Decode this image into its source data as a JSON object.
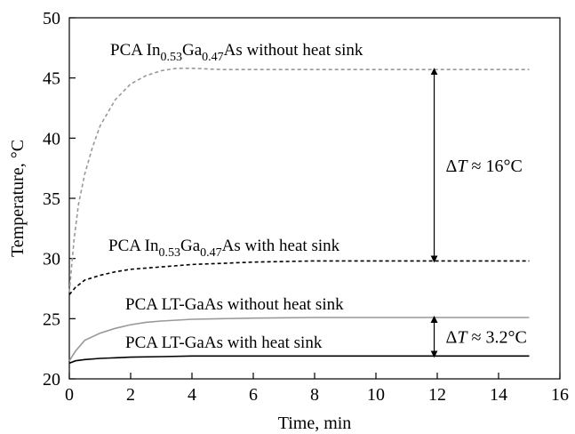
{
  "chart_data": {
    "type": "line",
    "xlabel": "Time, min",
    "ylabel": "Temperature, °C",
    "xlim": [
      0,
      16
    ],
    "ylim": [
      20,
      50
    ],
    "xticks": [
      "0",
      "2",
      "4",
      "6",
      "8",
      "10",
      "12",
      "14",
      "16"
    ],
    "yticks": [
      "20",
      "25",
      "30",
      "35",
      "40",
      "45",
      "50"
    ],
    "grid": false,
    "series": [
      {
        "name_main": "PCA In",
        "name_sub1": "0.53",
        "name_mid": "Ga",
        "name_sub2": "0.47",
        "name_tail": "As without heat sink",
        "color": "#999999",
        "style": "dashed",
        "x": [
          0,
          0.15,
          0.3,
          0.5,
          0.75,
          1,
          1.5,
          2,
          2.5,
          3,
          3.5,
          4,
          5,
          6,
          8,
          10,
          12,
          14,
          15
        ],
        "y": [
          27.2,
          31.5,
          34.5,
          37.0,
          39.2,
          41.0,
          43.2,
          44.5,
          45.2,
          45.6,
          45.8,
          45.8,
          45.7,
          45.7,
          45.7,
          45.7,
          45.7,
          45.7,
          45.7
        ]
      },
      {
        "name_main": "PCA In",
        "name_sub1": "0.53",
        "name_mid": "Ga",
        "name_sub2": "0.47",
        "name_tail": "As with heat sink",
        "color": "#000000",
        "style": "dashed",
        "x": [
          0,
          0.2,
          0.5,
          1,
          1.5,
          2,
          3,
          4,
          5,
          6,
          8,
          10,
          12,
          14,
          15
        ],
        "y": [
          27.0,
          27.6,
          28.2,
          28.6,
          28.9,
          29.1,
          29.3,
          29.5,
          29.6,
          29.7,
          29.8,
          29.8,
          29.8,
          29.8,
          29.8
        ]
      },
      {
        "name": "PCA LT-GaAs without heat sink",
        "color": "#999999",
        "style": "solid",
        "x": [
          0,
          0.2,
          0.5,
          1,
          1.5,
          2,
          2.5,
          3,
          4,
          5,
          6,
          8,
          10,
          12,
          14,
          15
        ],
        "y": [
          21.5,
          22.3,
          23.2,
          23.8,
          24.2,
          24.5,
          24.7,
          24.8,
          24.95,
          25.0,
          25.05,
          25.1,
          25.1,
          25.1,
          25.1,
          25.1
        ]
      },
      {
        "name": "PCA LT-GaAs with heat sink",
        "color": "#000000",
        "style": "solid",
        "x": [
          0,
          0.2,
          0.5,
          1,
          1.5,
          2,
          3,
          4,
          6,
          8,
          10,
          12,
          14,
          15
        ],
        "y": [
          21.3,
          21.5,
          21.6,
          21.7,
          21.75,
          21.8,
          21.85,
          21.9,
          21.9,
          21.9,
          21.9,
          21.9,
          21.9,
          21.9
        ]
      }
    ],
    "annotations": [
      {
        "text": "ΔT ≈ 16°C",
        "x": 11.9,
        "y_from": 45.7,
        "y_to": 29.8
      },
      {
        "text": "ΔT ≈ 3.2°C",
        "x": 11.9,
        "y_from": 25.1,
        "y_to": 21.9
      }
    ]
  }
}
